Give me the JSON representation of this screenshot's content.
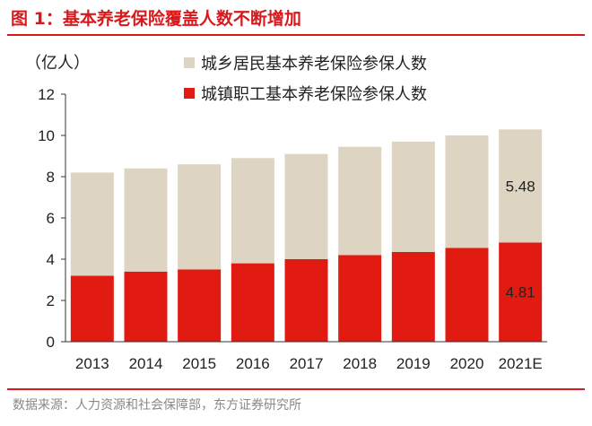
{
  "header": {
    "title": "图 1：基本养老保险覆盖人数不断增加"
  },
  "footer": {
    "source": "数据来源：人力资源和社会保障部，东方证券研究所"
  },
  "colors": {
    "accent": "#d7191c",
    "urban": "#e21b12",
    "rural": "#ddd4c2"
  },
  "chart_data": {
    "type": "bar",
    "stacked": true,
    "ylabel": "（亿人）",
    "ylim": [
      0,
      12
    ],
    "yticks": [
      0,
      2,
      4,
      6,
      8,
      10,
      12
    ],
    "grid": false,
    "legend_position": "top-right",
    "categories": [
      "2013",
      "2014",
      "2015",
      "2016",
      "2017",
      "2018",
      "2019",
      "2020",
      "2021E"
    ],
    "series": [
      {
        "name": "城镇职工基本养老保险参保人数",
        "color": "#e21b12",
        "values": [
          3.2,
          3.4,
          3.5,
          3.8,
          4.0,
          4.2,
          4.35,
          4.55,
          4.81
        ]
      },
      {
        "name": "城乡居民基本养老保险参保人数",
        "color": "#ddd4c2",
        "values": [
          5.0,
          5.0,
          5.1,
          5.1,
          5.1,
          5.25,
          5.35,
          5.45,
          5.48
        ]
      }
    ],
    "legend_order": [
      1,
      0
    ],
    "data_labels": [
      {
        "category": "2021E",
        "series": 1,
        "text": "5.48"
      },
      {
        "category": "2021E",
        "series": 0,
        "text": "4.81"
      }
    ]
  }
}
